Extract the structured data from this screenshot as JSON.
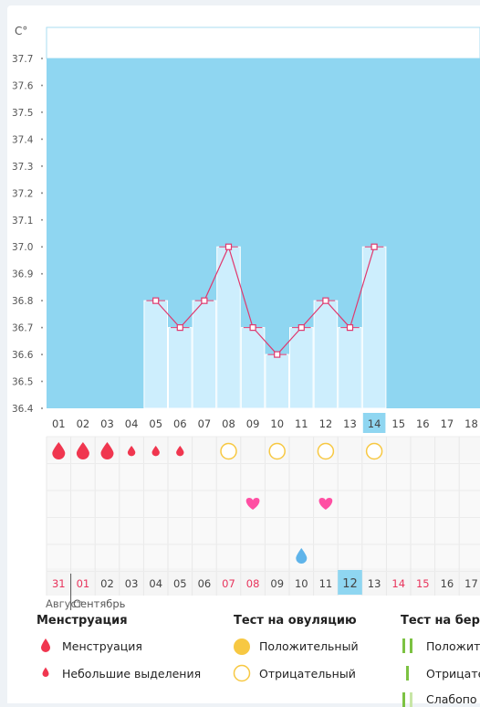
{
  "chart_data": {
    "type": "bar",
    "y_unit": "C°",
    "ylim": [
      36.4,
      37.7
    ],
    "y_ticks": [
      "36.4",
      "36.5",
      "36.6",
      "36.7",
      "36.8",
      "36.9",
      "37.0",
      "37.1",
      "37.2",
      "37.3",
      "37.4",
      "37.5",
      "37.6",
      "37.7"
    ],
    "cycle_days": [
      "01",
      "02",
      "03",
      "04",
      "05",
      "06",
      "07",
      "08",
      "09",
      "10",
      "11",
      "12",
      "13",
      "14",
      "15",
      "16",
      "17",
      "18"
    ],
    "temperatures": [
      null,
      null,
      null,
      null,
      36.8,
      36.7,
      36.8,
      37.0,
      36.7,
      36.6,
      36.7,
      36.8,
      36.7,
      37.0,
      null,
      null,
      null,
      null
    ],
    "today_index": 13,
    "menstruation": [
      "heavy",
      "heavy",
      "heavy",
      "light",
      "light",
      "light",
      null,
      null,
      null,
      null,
      null,
      null,
      null,
      null,
      null,
      null,
      null,
      null
    ],
    "ovulation_test": [
      null,
      null,
      null,
      null,
      null,
      null,
      null,
      "negative",
      null,
      "negative",
      null,
      "negative",
      null,
      "negative",
      null,
      null,
      null,
      null
    ],
    "heart_marks": [
      8,
      11
    ],
    "drop_marks": [
      10
    ],
    "dates": [
      "31",
      "01",
      "02",
      "03",
      "04",
      "05",
      "06",
      "07",
      "08",
      "09",
      "10",
      "11",
      "12",
      "13",
      "14",
      "15",
      "16",
      "17"
    ],
    "date_red": [
      true,
      true,
      false,
      false,
      false,
      false,
      false,
      true,
      true,
      false,
      false,
      false,
      false,
      false,
      true,
      true,
      false,
      false
    ],
    "months": [
      {
        "label": "Август",
        "index": 0
      },
      {
        "label": "Сентябрь",
        "index": 1
      }
    ],
    "colors": {
      "bar": "#cdeefd",
      "background": "#8fd6f1",
      "line": "#e0386e",
      "today": "#8fd6f1",
      "menstruation": "#f0364f",
      "heart": "#ff4fa3",
      "drop": "#5fb4ea",
      "ovulation_negative": "#f7c842"
    }
  },
  "legend": {
    "menstruation": {
      "title": "Менструация",
      "items": [
        "Менструация",
        "Небольшие выделения"
      ]
    },
    "ovulation": {
      "title": "Тест на овуляцию",
      "items": [
        "Положительный",
        "Отрицательный"
      ]
    },
    "pregnancy": {
      "title": "Тест на бере",
      "items": [
        "Положит",
        "Отрицате",
        "Слабопо"
      ]
    }
  }
}
